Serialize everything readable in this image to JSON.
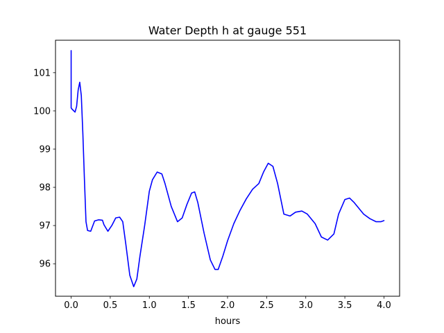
{
  "chart_data": {
    "type": "line",
    "title": "Water Depth h at gauge 551",
    "xlabel": "hours",
    "ylabel": "",
    "xlim": [
      -0.2,
      4.2
    ],
    "ylim": [
      95.15,
      101.85
    ],
    "grid": false,
    "legend": "none",
    "x_ticks": [
      0.0,
      0.5,
      1.0,
      1.5,
      2.0,
      2.5,
      3.0,
      3.5,
      4.0
    ],
    "x_tick_labels": [
      "0.0",
      "0.5",
      "1.0",
      "1.5",
      "2.0",
      "2.5",
      "3.0",
      "3.5",
      "4.0"
    ],
    "y_ticks": [
      96,
      97,
      98,
      99,
      100,
      101
    ],
    "y_tick_labels": [
      "96",
      "97",
      "98",
      "99",
      "100",
      "101"
    ],
    "series": [
      {
        "color": "#0000ff",
        "x": [
          0.0,
          0.0,
          0.01,
          0.05,
          0.07,
          0.09,
          0.11,
          0.13,
          0.15,
          0.17,
          0.19,
          0.21,
          0.25,
          0.3,
          0.35,
          0.4,
          0.42,
          0.47,
          0.52,
          0.57,
          0.62,
          0.66,
          0.7,
          0.75,
          0.8,
          0.84,
          0.88,
          0.94,
          1.0,
          1.04,
          1.1,
          1.16,
          1.2,
          1.28,
          1.36,
          1.42,
          1.48,
          1.54,
          1.58,
          1.62,
          1.7,
          1.78,
          1.84,
          1.88,
          1.94,
          2.0,
          2.08,
          2.16,
          2.24,
          2.32,
          2.4,
          2.46,
          2.52,
          2.58,
          2.64,
          2.72,
          2.8,
          2.87,
          2.95,
          3.02,
          3.12,
          3.2,
          3.28,
          3.36,
          3.42,
          3.5,
          3.56,
          3.62,
          3.68,
          3.74,
          3.82,
          3.9,
          3.96,
          4.0
        ],
        "y": [
          101.58,
          100.08,
          100.05,
          99.97,
          100.12,
          100.55,
          100.75,
          100.4,
          99.4,
          98.2,
          97.1,
          96.87,
          96.85,
          97.12,
          97.15,
          97.14,
          97.02,
          96.85,
          97.0,
          97.2,
          97.22,
          97.1,
          96.5,
          95.7,
          95.4,
          95.6,
          96.2,
          97.0,
          97.9,
          98.2,
          98.4,
          98.35,
          98.1,
          97.5,
          97.1,
          97.2,
          97.55,
          97.85,
          97.88,
          97.6,
          96.8,
          96.1,
          95.85,
          95.85,
          96.2,
          96.6,
          97.05,
          97.4,
          97.7,
          97.95,
          98.1,
          98.4,
          98.63,
          98.55,
          98.1,
          97.3,
          97.25,
          97.35,
          97.38,
          97.3,
          97.05,
          96.7,
          96.62,
          96.78,
          97.3,
          97.68,
          97.72,
          97.6,
          97.45,
          97.3,
          97.18,
          97.1,
          97.1,
          97.13
        ]
      }
    ]
  }
}
